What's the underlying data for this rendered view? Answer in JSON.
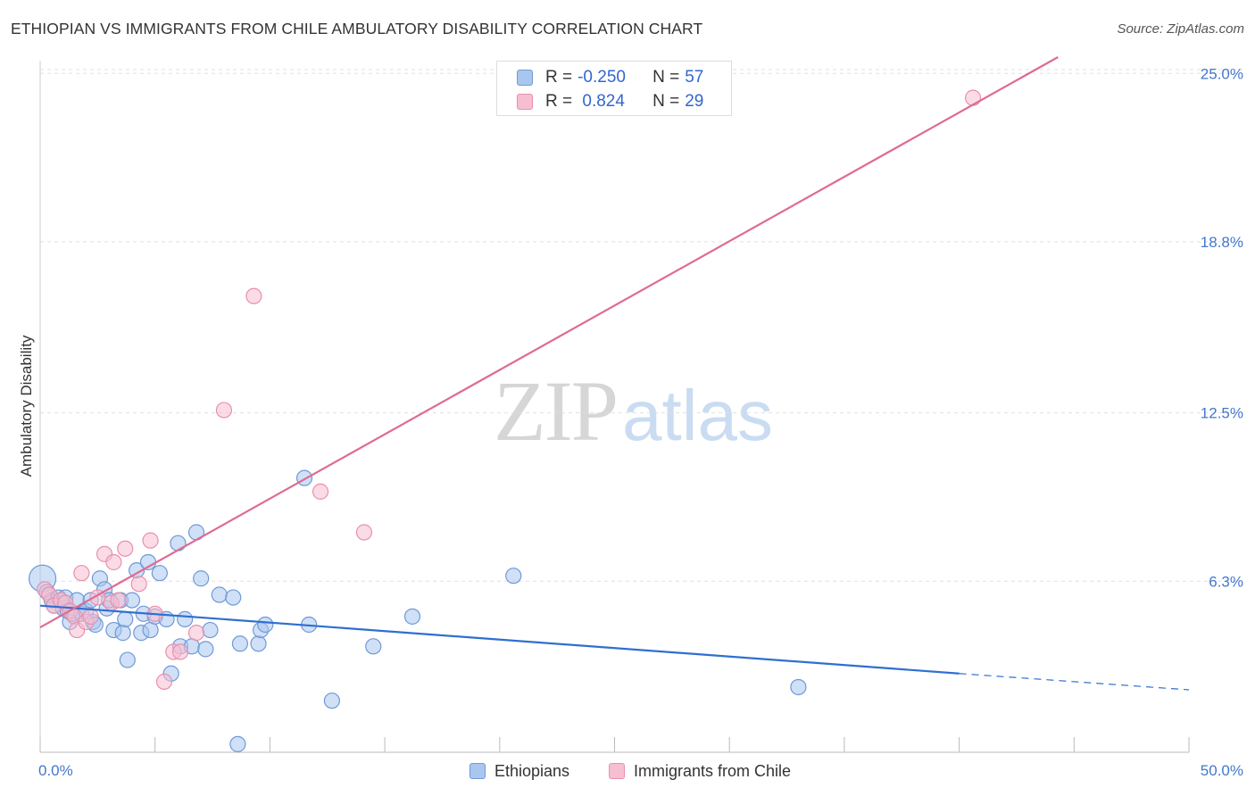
{
  "header": {
    "title": "ETHIOPIAN VS IMMIGRANTS FROM CHILE AMBULATORY DISABILITY CORRELATION CHART",
    "source": "Source: ZipAtlas.com"
  },
  "watermark": {
    "zip": "ZIP",
    "atlas": "atlas"
  },
  "legend": {
    "rows": [
      {
        "r_label": "R =",
        "r_value": "-0.250",
        "n_label": "N =",
        "n_value": "57"
      },
      {
        "r_label": "R =",
        "r_value": " 0.824",
        "n_label": "N =",
        "n_value": "29"
      }
    ]
  },
  "colors": {
    "ethiopians_fill": "#a9c6ef",
    "ethiopians_stroke": "#6f99d8",
    "ethiopians_line": "#2f6fd0",
    "chile_fill": "#f7bdd0",
    "chile_stroke": "#e890ad",
    "chile_line": "#e06a93",
    "grid": "#e0e0e0",
    "tick_text": "#4477cc"
  },
  "chart_data": {
    "type": "scatter",
    "title": "ETHIOPIAN VS IMMIGRANTS FROM CHILE AMBULATORY DISABILITY CORRELATION CHART",
    "xlabel": "",
    "ylabel": "Ambulatory Disability",
    "xlim": [
      0,
      50
    ],
    "ylim": [
      0,
      25.6
    ],
    "x_tick_labels": [
      "0.0%",
      "50.0%"
    ],
    "y_ticks": [
      6.3,
      12.5,
      18.8,
      25.0
    ],
    "y_tick_labels": [
      "6.3%",
      "12.5%",
      "18.8%",
      "25.0%"
    ],
    "grid": true,
    "legend_position": "top-center",
    "series": [
      {
        "name": "Ethiopians",
        "r": -0.25,
        "n": 57,
        "trend": {
          "x_start": 0,
          "y_start": 5.4,
          "x_solid_end": 40,
          "y_solid_end": 2.9,
          "x_end": 50,
          "y_end": 2.3
        },
        "points": [
          [
            0.1,
            6.4
          ],
          [
            0.3,
            5.9
          ],
          [
            0.5,
            5.6
          ],
          [
            0.6,
            5.4
          ],
          [
            0.8,
            5.7
          ],
          [
            1.0,
            5.3
          ],
          [
            1.1,
            5.7
          ],
          [
            1.2,
            5.2
          ],
          [
            1.3,
            4.8
          ],
          [
            1.4,
            5.1
          ],
          [
            1.6,
            5.6
          ],
          [
            1.8,
            5.1
          ],
          [
            2.0,
            5.2
          ],
          [
            2.2,
            5.6
          ],
          [
            2.3,
            4.8
          ],
          [
            2.6,
            6.4
          ],
          [
            2.8,
            6.0
          ],
          [
            2.9,
            5.3
          ],
          [
            3.0,
            5.6
          ],
          [
            3.2,
            4.5
          ],
          [
            3.5,
            5.6
          ],
          [
            3.6,
            4.4
          ],
          [
            3.7,
            4.9
          ],
          [
            3.8,
            3.4
          ],
          [
            4.0,
            5.6
          ],
          [
            4.2,
            6.7
          ],
          [
            4.4,
            4.4
          ],
          [
            4.5,
            5.1
          ],
          [
            4.7,
            7.0
          ],
          [
            4.8,
            4.5
          ],
          [
            5.0,
            5.0
          ],
          [
            5.2,
            6.6
          ],
          [
            5.5,
            4.9
          ],
          [
            5.7,
            2.9
          ],
          [
            6.0,
            7.7
          ],
          [
            6.1,
            3.9
          ],
          [
            6.3,
            4.9
          ],
          [
            6.6,
            3.9
          ],
          [
            6.8,
            8.1
          ],
          [
            7.0,
            6.4
          ],
          [
            7.2,
            3.8
          ],
          [
            7.4,
            4.5
          ],
          [
            7.8,
            5.8
          ],
          [
            8.4,
            5.7
          ],
          [
            8.6,
            0.3
          ],
          [
            8.7,
            4.0
          ],
          [
            9.5,
            4.0
          ],
          [
            9.6,
            4.5
          ],
          [
            9.8,
            4.7
          ],
          [
            11.5,
            10.1
          ],
          [
            11.7,
            4.7
          ],
          [
            12.7,
            1.9
          ],
          [
            14.5,
            3.9
          ],
          [
            16.2,
            5.0
          ],
          [
            20.6,
            6.5
          ],
          [
            33.0,
            2.4
          ],
          [
            2.4,
            4.7
          ]
        ]
      },
      {
        "name": "Immigrants from Chile",
        "r": 0.824,
        "n": 29,
        "trend": {
          "x_start": 0,
          "y_start": 4.6,
          "x_end": 44.3,
          "y_end": 25.6
        },
        "points": [
          [
            0.2,
            6.0
          ],
          [
            0.4,
            5.8
          ],
          [
            0.6,
            5.4
          ],
          [
            0.9,
            5.6
          ],
          [
            1.1,
            5.5
          ],
          [
            1.3,
            5.2
          ],
          [
            1.5,
            5.0
          ],
          [
            1.6,
            4.5
          ],
          [
            1.8,
            6.6
          ],
          [
            2.0,
            4.8
          ],
          [
            2.2,
            5.0
          ],
          [
            2.5,
            5.7
          ],
          [
            2.8,
            7.3
          ],
          [
            3.1,
            5.5
          ],
          [
            3.2,
            7.0
          ],
          [
            3.7,
            7.5
          ],
          [
            4.3,
            6.2
          ],
          [
            4.8,
            7.8
          ],
          [
            5.0,
            5.1
          ],
          [
            5.4,
            2.6
          ],
          [
            5.8,
            3.7
          ],
          [
            6.1,
            3.7
          ],
          [
            6.8,
            4.4
          ],
          [
            8.0,
            12.6
          ],
          [
            9.3,
            16.8
          ],
          [
            12.2,
            9.6
          ],
          [
            14.1,
            8.1
          ],
          [
            40.6,
            24.1
          ],
          [
            3.4,
            5.6
          ]
        ]
      }
    ]
  },
  "bottom_legend": {
    "items": [
      {
        "label": "Ethiopians"
      },
      {
        "label": "Immigrants from Chile"
      }
    ]
  }
}
